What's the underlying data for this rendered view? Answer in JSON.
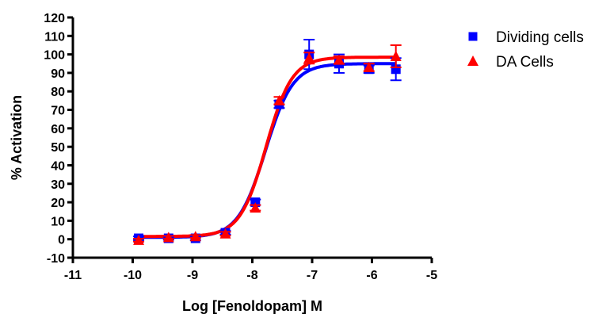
{
  "chart_data": {
    "type": "scatter",
    "title": "",
    "xlabel": "Log [Fenoldopam] M",
    "ylabel": "% Activation",
    "xlim": [
      -11,
      -5
    ],
    "ylim": [
      -10,
      120
    ],
    "xticks": [
      -11,
      -10,
      -9,
      -8,
      -7,
      -6,
      -5
    ],
    "yticks": [
      -10,
      0,
      10,
      20,
      30,
      40,
      50,
      60,
      70,
      80,
      90,
      100,
      110,
      120
    ],
    "grid": false,
    "legend_position": "top-right",
    "series": [
      {
        "name": "Dividing cells",
        "marker": "square",
        "color": "#0000ff",
        "x": [
          -9.9,
          -9.4,
          -8.95,
          -8.45,
          -7.95,
          -7.55,
          -7.05,
          -6.55,
          -6.05,
          -5.6
        ],
        "y": [
          0.5,
          0.5,
          0.5,
          3.5,
          20,
          73,
          100,
          95,
          92,
          92
        ],
        "error": [
          1,
          0.8,
          1,
          1,
          1.5,
          2,
          8,
          5,
          2,
          6
        ],
        "fit": {
          "bottom": 1,
          "top": 95,
          "logEC50": -7.78,
          "hill": 1.9
        }
      },
      {
        "name": "DA Cells",
        "marker": "triangle",
        "color": "#ff0000",
        "x": [
          -9.9,
          -9.4,
          -8.95,
          -8.45,
          -7.95,
          -7.55,
          -7.05,
          -6.55,
          -6.05,
          -5.6
        ],
        "y": [
          -0.5,
          1,
          1.5,
          3,
          17,
          75,
          98,
          97,
          93,
          99
        ],
        "error": [
          0.8,
          0.8,
          0.8,
          1,
          1.5,
          2,
          3,
          2,
          2,
          6
        ],
        "fit": {
          "bottom": 1.5,
          "top": 98.5,
          "logEC50": -7.77,
          "hill": 2.0
        }
      }
    ]
  }
}
